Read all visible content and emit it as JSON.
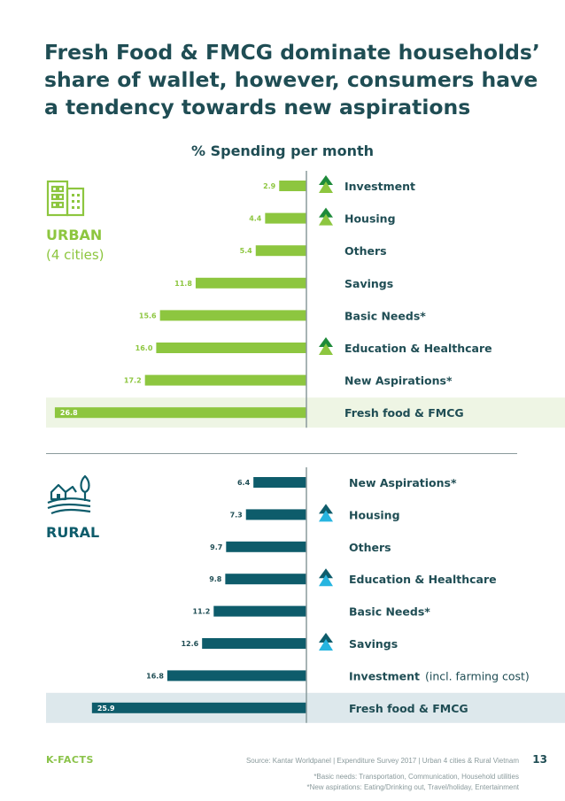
{
  "page": {
    "title": "Fresh Food & FMCG dominate households’ share of wallet, however, consumers have a tendency towards new aspirations",
    "subtitle": "% Spending per month",
    "brand": "K-FACTS",
    "source": "Source: Kantar Worldpanel | Expenditure Survey 2017 | Urban 4 cities & Rural Vietnam",
    "page_number": "13",
    "note_basic": "*Basic needs: Transportation, Communication, Household utilities",
    "note_aspirations": "*New aspirations: Eating/Drinking out, Travel/holiday, Entertainment"
  },
  "urban": {
    "label": "URBAN",
    "sublabel": "(4 cities)",
    "icon": "city-building-icon"
  },
  "rural": {
    "label": "RURAL",
    "icon": "farm-house-icon"
  },
  "colors": {
    "urban_bar": "#8dc63f",
    "rural_bar": "#0e5c6b",
    "urban_highlight": "#eef5e4",
    "rural_highlight": "#dde8ec",
    "urban_arrow_top": "#1e8a3a",
    "urban_arrow_bottom": "#8dc63f",
    "rural_arrow_top": "#0e5c6b",
    "rural_arrow_bottom": "#27b5e0",
    "label_text": "#1f4d54"
  },
  "chart_data": [
    {
      "type": "bar",
      "orientation": "horizontal",
      "group": "URBAN",
      "categories": [
        "Investment",
        "Housing",
        "Others",
        "Savings",
        "Basic Needs*",
        "Education & Healthcare",
        "New Aspirations*",
        "Fresh food & FMCG"
      ],
      "values": [
        2.9,
        4.4,
        5.4,
        11.8,
        15.6,
        16.0,
        17.2,
        26.8
      ],
      "value_labels": [
        "2.9",
        "4.4",
        "5.4",
        "11.8",
        "15.6",
        "16.0",
        "17.2",
        "26.8"
      ],
      "category_notes": [
        "",
        "",
        "",
        "",
        "",
        "",
        "",
        ""
      ],
      "trend_up": [
        true,
        true,
        false,
        false,
        false,
        true,
        false,
        false
      ],
      "highlighted": [
        false,
        false,
        false,
        false,
        false,
        false,
        false,
        true
      ]
    },
    {
      "type": "bar",
      "orientation": "horizontal",
      "group": "RURAL",
      "categories": [
        "New Aspirations*",
        "Housing",
        "Others",
        "Education & Healthcare",
        "Basic Needs*",
        "Savings",
        "Investment",
        "Fresh food & FMCG"
      ],
      "values": [
        6.4,
        7.3,
        9.7,
        9.8,
        11.2,
        12.6,
        16.8,
        25.9
      ],
      "value_labels": [
        "6.4",
        "7.3",
        "9.7",
        "9.8",
        "11.2",
        "12.6",
        "16.8",
        "25.9"
      ],
      "category_notes": [
        "",
        "",
        "",
        "",
        "",
        "",
        "(incl. farming cost)",
        ""
      ],
      "trend_up": [
        false,
        true,
        false,
        true,
        false,
        true,
        false,
        false
      ],
      "highlighted": [
        false,
        false,
        false,
        false,
        false,
        false,
        false,
        true
      ]
    }
  ]
}
